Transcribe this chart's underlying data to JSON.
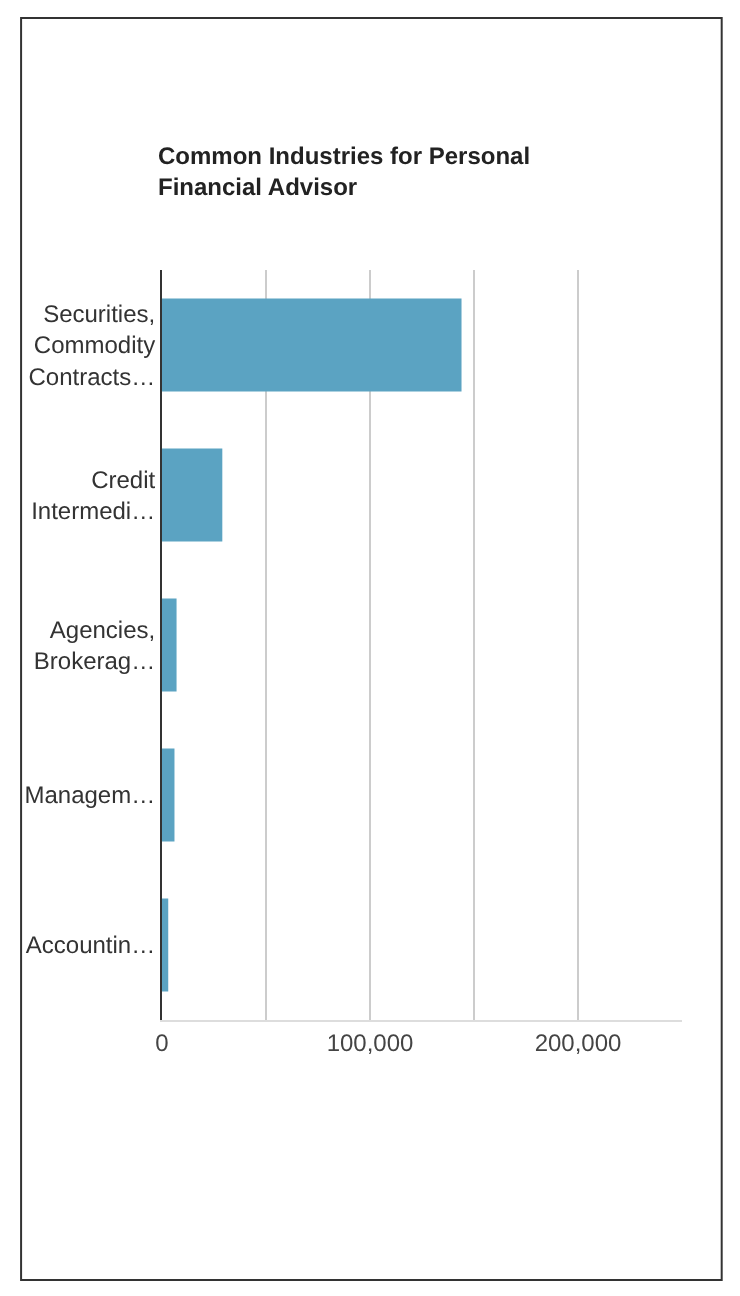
{
  "chart_data": {
    "type": "bar",
    "orientation": "horizontal",
    "title": "Common Industries for Personal Financial Advisor",
    "categories": [
      "Securities, Commodity Contracts…",
      "Credit Intermedi…",
      "Agencies, Brokerag…",
      "Managem…",
      "Accountin…"
    ],
    "values": [
      144000,
      29000,
      7000,
      6000,
      3000
    ],
    "color": "#5ba3c2",
    "xlim": [
      0,
      250000
    ],
    "xticks": [
      0,
      {
        "value": 50000,
        "label": null
      },
      "100,000",
      {
        "value": 150000,
        "label": null
      },
      {
        "value": 200000,
        "label": "200,000"
      }
    ],
    "grid": "x"
  }
}
